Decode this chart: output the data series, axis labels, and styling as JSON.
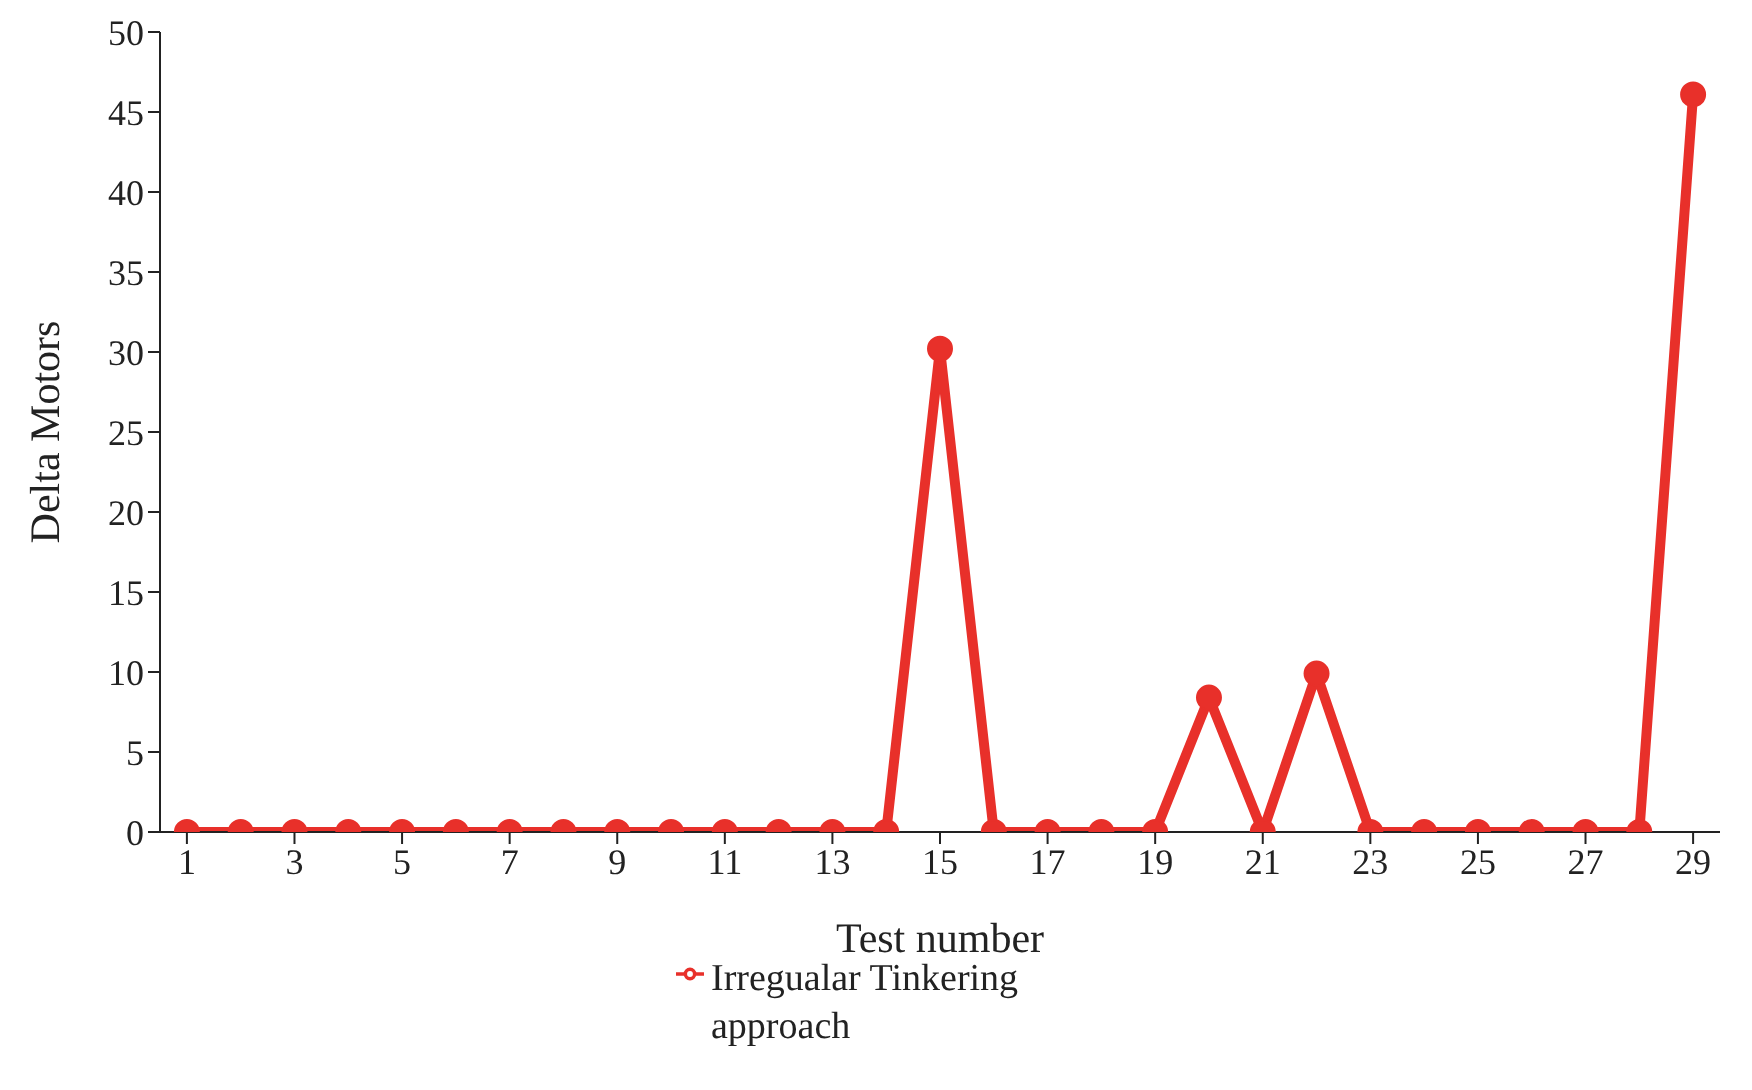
{
  "chart_data": {
    "type": "line",
    "xlabel": "Test number",
    "ylabel": "Delta Motors",
    "x": [
      1,
      2,
      3,
      4,
      5,
      6,
      7,
      8,
      9,
      10,
      11,
      12,
      13,
      14,
      15,
      16,
      17,
      18,
      19,
      20,
      21,
      22,
      23,
      24,
      25,
      26,
      27,
      28,
      29
    ],
    "series": [
      {
        "name": "Irregualar Tinkering approach",
        "color": "#e8302a",
        "values": [
          0,
          0,
          0,
          0,
          0,
          0,
          0,
          0,
          0,
          0,
          0,
          0,
          0,
          0,
          30.2,
          0,
          0,
          0,
          0,
          8.4,
          0,
          9.9,
          0,
          0,
          0,
          0,
          0,
          0,
          46.1
        ]
      }
    ],
    "xlim": [
      0.5,
      29.5
    ],
    "xticks": [
      1,
      3,
      5,
      7,
      9,
      11,
      13,
      15,
      17,
      19,
      21,
      23,
      25,
      27,
      29
    ],
    "ylim": [
      0,
      50
    ],
    "yticks": [
      0,
      5,
      10,
      15,
      20,
      25,
      30,
      35,
      40,
      45,
      50
    ],
    "grid": false,
    "legend": "bottom",
    "marker": "circle",
    "line_style": "solid"
  }
}
